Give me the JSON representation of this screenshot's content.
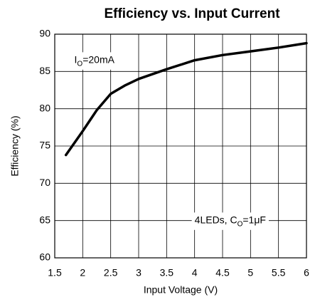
{
  "chart_data": {
    "type": "line",
    "title": "Efficiency vs. Input Current",
    "x_label": "Input Voltage (V)",
    "y_label": "Efficiency (%)",
    "x": [
      1.7,
      2.0,
      2.25,
      2.5,
      2.75,
      3.0,
      3.5,
      4.0,
      4.5,
      5.0,
      5.5,
      6.0
    ],
    "series": [
      {
        "name": null,
        "color": "#000000",
        "values": [
          73.8,
          77.0,
          79.8,
          82.0,
          83.1,
          84.0,
          85.3,
          86.5,
          87.2,
          87.7,
          88.2,
          88.8
        ]
      }
    ],
    "xlim": [
      1.5,
      6
    ],
    "xticks": [
      1.5,
      2,
      2.5,
      3,
      3.5,
      4,
      4.5,
      5,
      5.5,
      6
    ],
    "ylim": [
      60,
      90
    ],
    "yticks": [
      60,
      65,
      70,
      75,
      80,
      85,
      90
    ],
    "grid": true,
    "annotations": [
      {
        "parts": [
          "I",
          "O",
          "=20mA"
        ],
        "x": 1.85,
        "y": 86.5
      },
      {
        "parts": [
          "4LEDs, C",
          "O",
          "=1μF"
        ],
        "x": 4.0,
        "y": 65
      }
    ]
  }
}
